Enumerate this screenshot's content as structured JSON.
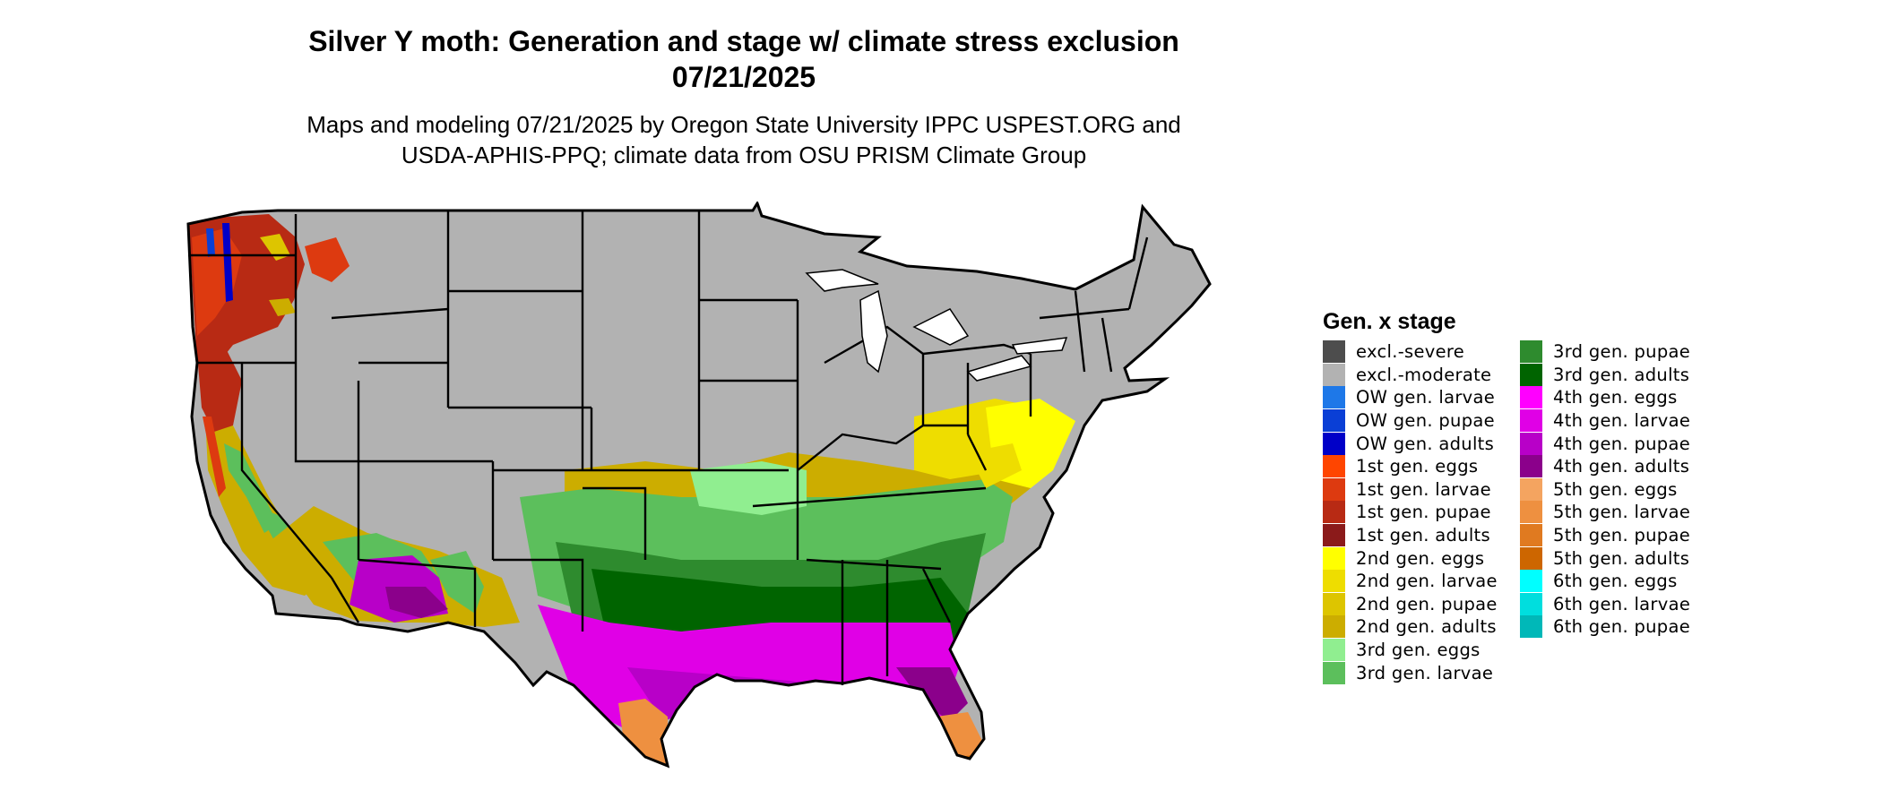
{
  "title_line1": "Silver Y moth: Generation and stage w/ climate stress exclusion",
  "title_line2": "07/21/2025",
  "subtitle_line1": "Maps and modeling 07/21/2025 by Oregon State University IPPC USPEST.ORG and",
  "subtitle_line2": "USDA-APHIS-PPQ; climate data from OSU PRISM Climate Group",
  "legend": {
    "title": "Gen. x stage",
    "items": [
      {
        "label": "excl.-severe",
        "color": "#4d4d4d"
      },
      {
        "label": "excl.-moderate",
        "color": "#b2b2b2"
      },
      {
        "label": "OW gen. larvae",
        "color": "#1e78e8"
      },
      {
        "label": "OW gen. pupae",
        "color": "#0a3fd6"
      },
      {
        "label": "OW gen. adults",
        "color": "#0000c8"
      },
      {
        "label": "1st gen. eggs",
        "color": "#ff4500"
      },
      {
        "label": "1st gen. larvae",
        "color": "#dd3a10"
      },
      {
        "label": "1st gen. pupae",
        "color": "#b82a14"
      },
      {
        "label": "1st gen. adults",
        "color": "#8b1a1a"
      },
      {
        "label": "2nd gen. eggs",
        "color": "#ffff00"
      },
      {
        "label": "2nd gen. larvae",
        "color": "#eedd00"
      },
      {
        "label": "2nd gen. pupae",
        "color": "#ddc500"
      },
      {
        "label": "2nd gen. adults",
        "color": "#ccad00"
      },
      {
        "label": "3rd gen. eggs",
        "color": "#90ee90"
      },
      {
        "label": "3rd gen. larvae",
        "color": "#5cbf5c"
      },
      {
        "label": "3rd gen. pupae",
        "color": "#2e8b2e"
      },
      {
        "label": "3rd gen. adults",
        "color": "#006400"
      },
      {
        "label": "4th gen. eggs",
        "color": "#ff00ff"
      },
      {
        "label": "4th gen. larvae",
        "color": "#e000e6"
      },
      {
        "label": "4th gen. pupae",
        "color": "#b800c8"
      },
      {
        "label": "4th gen. adults",
        "color": "#8b008b"
      },
      {
        "label": "5th gen. eggs",
        "color": "#f4a460"
      },
      {
        "label": "5th gen. larvae",
        "color": "#ee9040"
      },
      {
        "label": "5th gen. pupae",
        "color": "#e07a20"
      },
      {
        "label": "5th gen. adults",
        "color": "#cd6600"
      },
      {
        "label": "6th gen. eggs",
        "color": "#00ffff"
      },
      {
        "label": "6th gen. larvae",
        "color": "#00dede"
      },
      {
        "label": "6th gen. pupae",
        "color": "#00b8b8"
      }
    ]
  }
}
